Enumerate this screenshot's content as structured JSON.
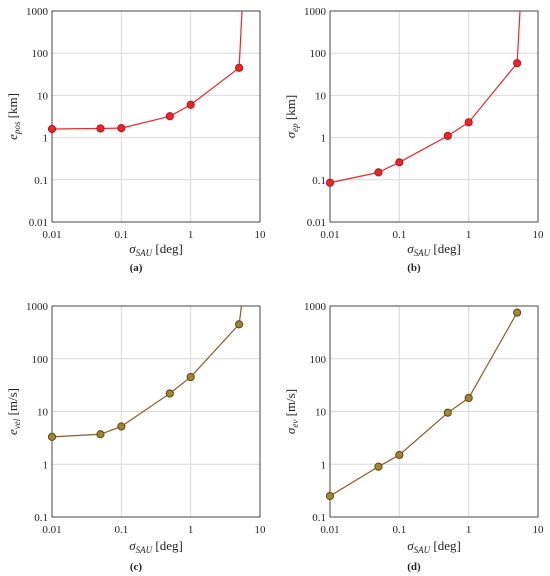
{
  "chart_data": [
    {
      "type": "line",
      "panel": "(a)",
      "ylabel_main": "e",
      "ylabel_sub": "pos",
      "ylabel_unit": " [km]",
      "xlabel_main": "σ",
      "xlabel_sub": "SAU",
      "xlabel_unit": " [deg]",
      "xscale": "log",
      "yscale": "log",
      "xlim": [
        0.01,
        10
      ],
      "ylim": [
        0.01,
        1000
      ],
      "xticks": [
        "0.01",
        "0.1",
        "1",
        "10"
      ],
      "yticks": [
        "0.01",
        "0.1",
        "1",
        "10",
        "100",
        "1000"
      ],
      "grid": true,
      "line_color": "#e8262b",
      "marker_fill": "#e8262b",
      "marker_edge": "#b3141a",
      "series": [
        {
          "x": [
            0.01,
            0.05,
            0.1,
            0.5,
            1,
            5,
            5.5
          ],
          "y": [
            1.6,
            1.65,
            1.68,
            3.2,
            6.0,
            45,
            1000
          ],
          "markers": [
            true,
            true,
            true,
            true,
            true,
            true,
            false
          ]
        }
      ]
    },
    {
      "type": "line",
      "panel": "(b)",
      "ylabel_main": "σ",
      "ylabel_sub": "ep",
      "ylabel_unit": " [km]",
      "xlabel_main": "σ",
      "xlabel_sub": "SAU",
      "xlabel_unit": " [deg]",
      "xscale": "log",
      "yscale": "log",
      "xlim": [
        0.01,
        10
      ],
      "ylim": [
        0.01,
        1000
      ],
      "xticks": [
        "0.01",
        "0.1",
        "1",
        "10"
      ],
      "yticks": [
        "0.01",
        "0.1",
        "1",
        "10",
        "100",
        "1000"
      ],
      "grid": true,
      "line_color": "#e8262b",
      "marker_fill": "#e8262b",
      "marker_edge": "#b3141a",
      "series": [
        {
          "x": [
            0.01,
            0.05,
            0.1,
            0.5,
            1,
            5,
            5.5
          ],
          "y": [
            0.085,
            0.15,
            0.26,
            1.1,
            2.3,
            58,
            1000
          ],
          "markers": [
            true,
            true,
            true,
            true,
            true,
            true,
            false
          ]
        }
      ]
    },
    {
      "type": "line",
      "panel": "(c)",
      "ylabel_main": "e",
      "ylabel_sub": "vel",
      "ylabel_unit": " [m/s]",
      "xlabel_main": "σ",
      "xlabel_sub": "SAU",
      "xlabel_unit": " [deg]",
      "xscale": "log",
      "yscale": "log",
      "xlim": [
        0.01,
        10
      ],
      "ylim": [
        0.1,
        1000
      ],
      "xticks": [
        "0.01",
        "0.1",
        "1",
        "10"
      ],
      "yticks": [
        "0.1",
        "1",
        "10",
        "100",
        "1000"
      ],
      "grid": true,
      "line_color": "#8b5a2b",
      "marker_fill": "#9a8a2e",
      "marker_edge": "#6b3e1a",
      "series": [
        {
          "x": [
            0.01,
            0.05,
            0.1,
            0.5,
            1,
            5,
            5.4
          ],
          "y": [
            3.3,
            3.7,
            5.2,
            22,
            45,
            450,
            1000
          ],
          "markers": [
            true,
            true,
            true,
            true,
            true,
            true,
            false
          ]
        }
      ]
    },
    {
      "type": "line",
      "panel": "(d)",
      "ylabel_main": "σ",
      "ylabel_sub": "ev",
      "ylabel_unit": " [m/s]",
      "xlabel_main": "σ",
      "xlabel_sub": "SAU",
      "xlabel_unit": " [deg]",
      "xscale": "log",
      "yscale": "log",
      "xlim": [
        0.01,
        10
      ],
      "ylim": [
        0.1,
        1000
      ],
      "xticks": [
        "0.01",
        "0.1",
        "1",
        "10"
      ],
      "yticks": [
        "0.1",
        "1",
        "10",
        "100",
        "1000"
      ],
      "grid": true,
      "line_color": "#8b5a2b",
      "marker_fill": "#9a8a2e",
      "marker_edge": "#6b3e1a",
      "series": [
        {
          "x": [
            0.01,
            0.05,
            0.1,
            0.5,
            1,
            5
          ],
          "y": [
            0.25,
            0.9,
            1.5,
            9.5,
            18,
            750
          ],
          "markers": [
            true,
            true,
            true,
            true,
            true,
            true
          ]
        }
      ]
    }
  ]
}
